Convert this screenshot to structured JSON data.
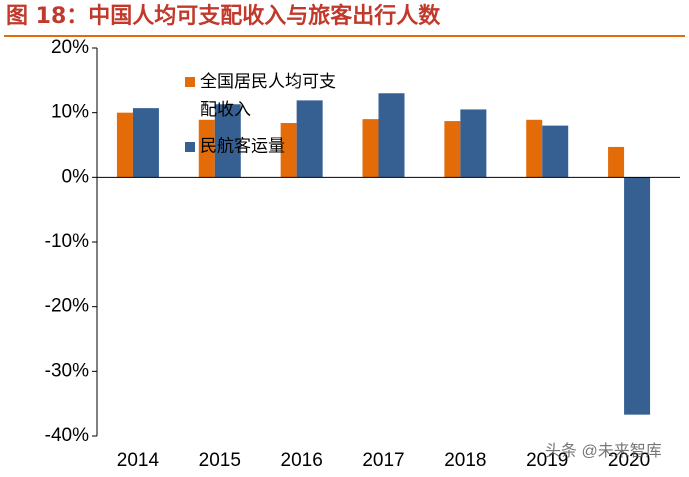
{
  "chart_data": {
    "type": "bar",
    "title": "图 18：中国人均可支配收入与旅客出行人数",
    "categories": [
      "2014",
      "2015",
      "2016",
      "2017",
      "2018",
      "2019",
      "2020"
    ],
    "series": [
      {
        "name": "全国居民人均可支配收入",
        "color": "#e36c09",
        "values": [
          10.0,
          8.9,
          8.4,
          9.0,
          8.7,
          8.9,
          4.7
        ]
      },
      {
        "name": "民航客运量",
        "color": "#366092",
        "values": [
          10.7,
          11.3,
          11.9,
          13.0,
          10.5,
          8.0,
          -36.7
        ]
      }
    ],
    "ylim": [
      -40,
      20
    ],
    "yticks": [
      {
        "value": -40,
        "label": "-40%"
      },
      {
        "value": -30,
        "label": "-30%"
      },
      {
        "value": -20,
        "label": "-20%"
      },
      {
        "value": -10,
        "label": "-10%"
      },
      {
        "value": 0,
        "label": "0%"
      },
      {
        "value": 10,
        "label": "10%"
      },
      {
        "value": 20,
        "label": "20%"
      }
    ],
    "legend": "upper-left",
    "watermark": "头条 @未来智库"
  }
}
